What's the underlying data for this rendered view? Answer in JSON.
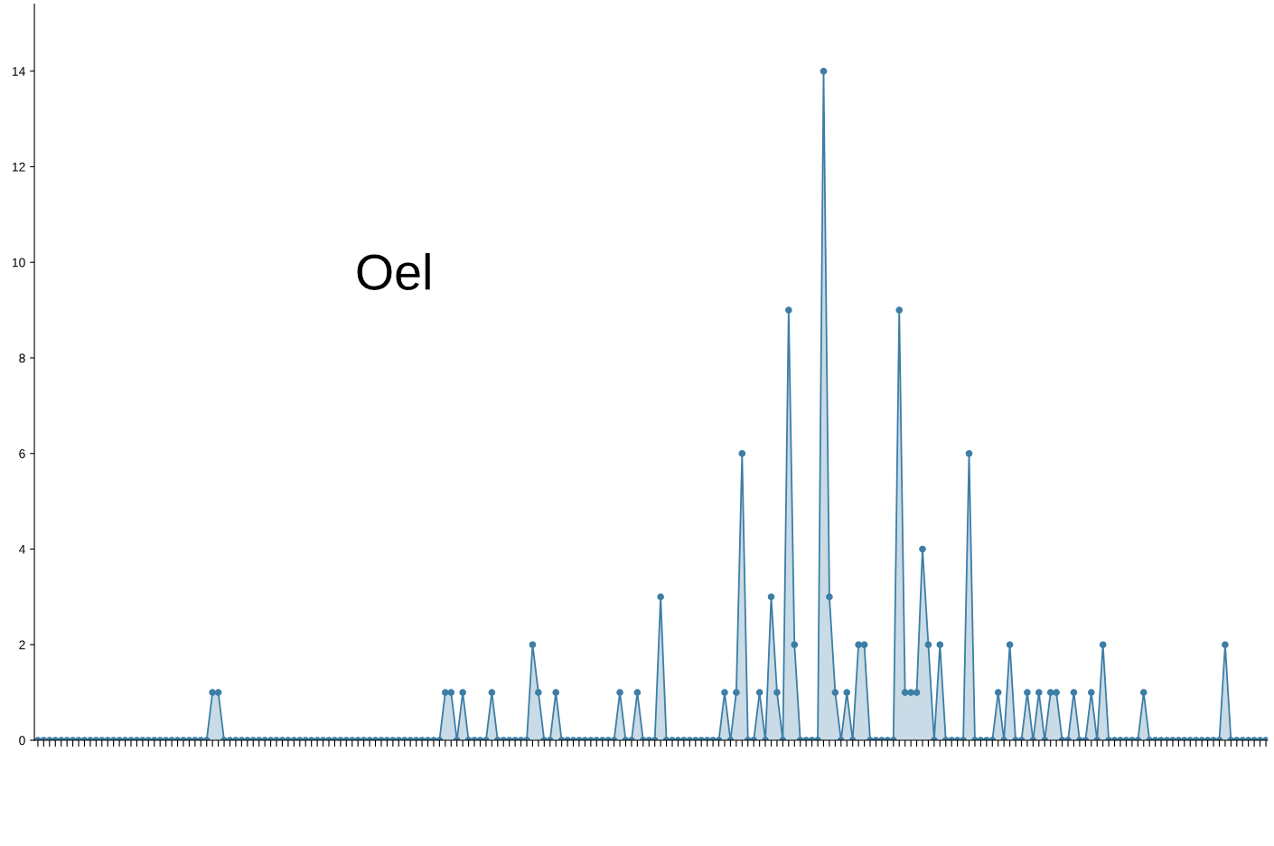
{
  "chart_data": {
    "type": "area",
    "title": "Oel",
    "categories": [
      null,
      null,
      null,
      null,
      null,
      null,
      null,
      null,
      null,
      null,
      null,
      null,
      null,
      null,
      null,
      null,
      null,
      null,
      null,
      null,
      null,
      null,
      null,
      null,
      null,
      null,
      null,
      null,
      null,
      null,
      null,
      null,
      null,
      null,
      null,
      null,
      null,
      null,
      null,
      null,
      null,
      null,
      null,
      null,
      null,
      null,
      null,
      null,
      null,
      null,
      null,
      null,
      null,
      null,
      null,
      null,
      null,
      null,
      null,
      null,
      null,
      null,
      null,
      null,
      null,
      null,
      null,
      null,
      null,
      null,
      null,
      null,
      null,
      null,
      null,
      null,
      null,
      null,
      null,
      null,
      null,
      null,
      null,
      null,
      null,
      null,
      null,
      null,
      null,
      null,
      null,
      null,
      null,
      null,
      null,
      null,
      null,
      null,
      null,
      null,
      null,
      null,
      null,
      null,
      null,
      null,
      null,
      null,
      null,
      null,
      null,
      null,
      null,
      null,
      null,
      null,
      null,
      null,
      null,
      null,
      null,
      null,
      null,
      null,
      null,
      null,
      null,
      null,
      null,
      null,
      null,
      null,
      null,
      null,
      null,
      null,
      null,
      null,
      null,
      null,
      null,
      null,
      null,
      null,
      null,
      null,
      null,
      null,
      null,
      null,
      null,
      null,
      null,
      null,
      null,
      null,
      null,
      null,
      null,
      null,
      null,
      null,
      null,
      null,
      null,
      null,
      null,
      null,
      null,
      null,
      null,
      null,
      null,
      null,
      null,
      null,
      null,
      null,
      null,
      null,
      null,
      null,
      null,
      null,
      null,
      null,
      null,
      null,
      null,
      null,
      null,
      null,
      null,
      null,
      null,
      null,
      null,
      null,
      null,
      null,
      null,
      null,
      null,
      null,
      null,
      null,
      null,
      null,
      null,
      null,
      null,
      null
    ],
    "series": [
      {
        "color": "#3d7ea6",
        "values": [
          0,
          0,
          0,
          0,
          0,
          0,
          0,
          0,
          0,
          0,
          0,
          0,
          0,
          0,
          0,
          0,
          0,
          0,
          0,
          0,
          0,
          0,
          0,
          0,
          0,
          0,
          0,
          0,
          0,
          0,
          1,
          1,
          0,
          0,
          0,
          0,
          0,
          0,
          0,
          0,
          0,
          0,
          0,
          0,
          0,
          0,
          0,
          0,
          0,
          0,
          0,
          0,
          0,
          0,
          0,
          0,
          0,
          0,
          0,
          0,
          0,
          0,
          0,
          0,
          0,
          0,
          0,
          0,
          0,
          0,
          1,
          1,
          0,
          1,
          0,
          0,
          0,
          0,
          1,
          0,
          0,
          0,
          0,
          0,
          0,
          2,
          1,
          0,
          0,
          1,
          0,
          0,
          0,
          0,
          0,
          0,
          0,
          0,
          0,
          0,
          1,
          0,
          0,
          1,
          0,
          0,
          0,
          3,
          0,
          0,
          0,
          0,
          0,
          0,
          0,
          0,
          0,
          0,
          1,
          0,
          1,
          6,
          0,
          0,
          1,
          0,
          3,
          1,
          0,
          9,
          2,
          0,
          0,
          0,
          0,
          14,
          3,
          1,
          0,
          1,
          0,
          2,
          2,
          0,
          0,
          0,
          0,
          0,
          9,
          1,
          1,
          1,
          4,
          2,
          0,
          2,
          0,
          0,
          0,
          0,
          6,
          0,
          0,
          0,
          0,
          1,
          0,
          2,
          0,
          0,
          1,
          0,
          1,
          0,
          1,
          1,
          0,
          0,
          1,
          0,
          0,
          1,
          0,
          2,
          0,
          0,
          0,
          0,
          0,
          0,
          1,
          0,
          0,
          0,
          0,
          0,
          0,
          0,
          0,
          0,
          0,
          0,
          0,
          0,
          2,
          0,
          0,
          0,
          0,
          0,
          0,
          0
        ]
      }
    ],
    "ylim": [
      0,
      15.4
    ],
    "yticks": [
      0,
      2,
      4,
      6,
      8,
      10,
      12,
      14
    ],
    "marker": "circle",
    "grid": false
  }
}
